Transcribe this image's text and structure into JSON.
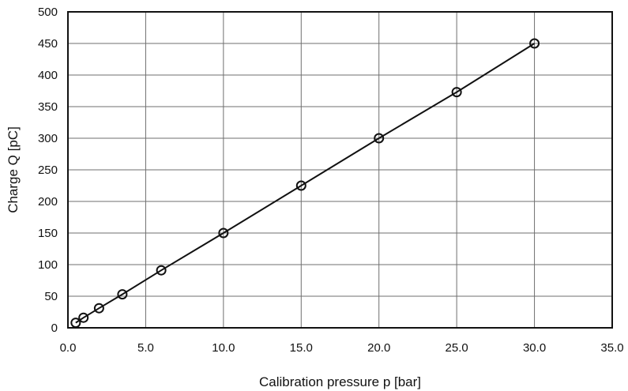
{
  "chart_data": {
    "type": "line",
    "title": "",
    "xlabel": "Calibration pressure p [bar]",
    "ylabel": "Charge Q [pC]",
    "xlim": [
      0,
      35
    ],
    "ylim": [
      0,
      500
    ],
    "x_ticks": [
      0,
      5,
      10,
      15,
      20,
      25,
      30,
      35
    ],
    "x_tick_labels": [
      "0.0",
      "5.0",
      "10.0",
      "15.0",
      "20.0",
      "25.0",
      "30.0",
      "35.0"
    ],
    "y_ticks": [
      0,
      50,
      100,
      150,
      200,
      250,
      300,
      350,
      400,
      450,
      500
    ],
    "y_tick_labels": [
      "0",
      "50",
      "100",
      "150",
      "200",
      "250",
      "300",
      "350",
      "400",
      "450",
      "500"
    ],
    "grid": true,
    "legend": "none",
    "series": [
      {
        "x": [
          0.5,
          1.0,
          2.0,
          3.5,
          6.0,
          10.0,
          15.0,
          20.0,
          25.0,
          30.0
        ],
        "y": [
          8,
          16,
          31,
          53,
          91,
          150,
          225,
          300,
          373,
          450
        ],
        "line_color": "#111111",
        "marker": "open-circle"
      }
    ]
  }
}
